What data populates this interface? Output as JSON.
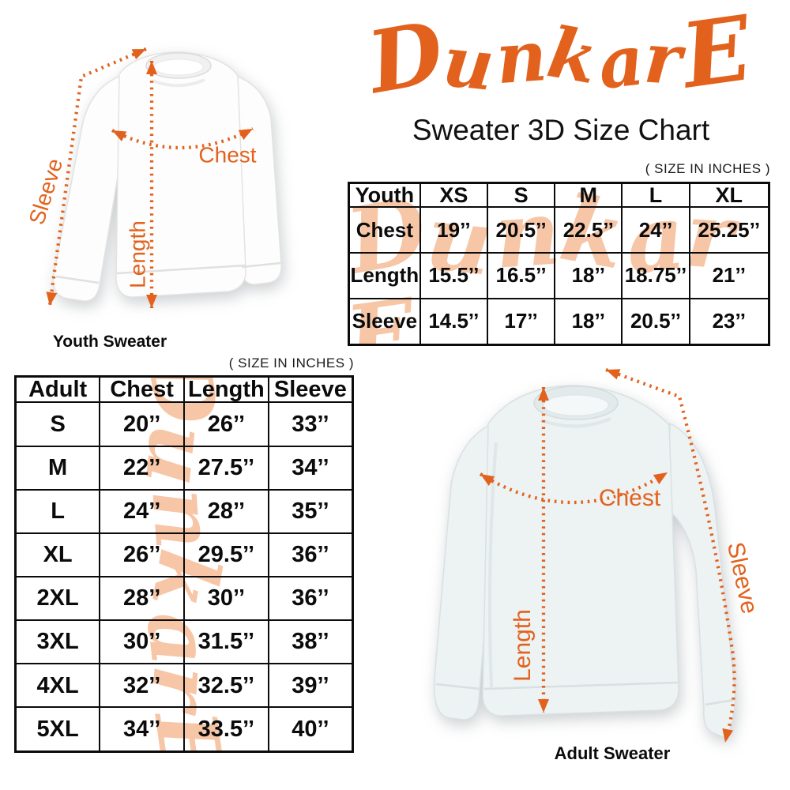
{
  "header": {
    "logo": "DunkarE",
    "subtitle": "Sweater 3D Size Chart",
    "units_note": "( SIZE IN INCHES )"
  },
  "diagrams": {
    "youth": {
      "caption": "Youth Sweater",
      "chest": "Chest",
      "length": "Length",
      "sleeve": "Sleeve"
    },
    "adult": {
      "caption": "Adult Sweater",
      "chest": "Chest",
      "length": "Length",
      "sleeve": "Sleeve"
    }
  },
  "youth_table": {
    "header": [
      "Youth",
      "XS",
      "S",
      "M",
      "L",
      "XL"
    ],
    "rows": [
      [
        "Chest",
        "19’’",
        "20.5’’",
        "22.5’’",
        "24’’",
        "25.25’’"
      ],
      [
        "Length",
        "15.5’’",
        "16.5’’",
        "18’’",
        "18.75’’",
        "21’’"
      ],
      [
        "Sleeve",
        "14.5’’",
        "17’’",
        "18’’",
        "20.5’’",
        "23’’"
      ]
    ]
  },
  "adult_table": {
    "header": [
      "Adult",
      "Chest",
      "Length",
      "Sleeve"
    ],
    "rows": [
      [
        "S",
        "20’’",
        "26’’",
        "33’’"
      ],
      [
        "M",
        "22’’",
        "27.5’’",
        "34’’"
      ],
      [
        "L",
        "24’’",
        "28’’",
        "35’’"
      ],
      [
        "XL",
        "26’’",
        "29.5’’",
        "36’’"
      ],
      [
        "2XL",
        "28’’",
        "30’’",
        "36’’"
      ],
      [
        "3XL",
        "30’’",
        "31.5’’",
        "38’’"
      ],
      [
        "4XL",
        "32’’",
        "32.5’’",
        "39’’"
      ],
      [
        "5XL",
        "34’’",
        "33.5’’",
        "40’’"
      ]
    ]
  },
  "colors": {
    "accent_orange": "#E2621D",
    "watermark_peach": "#F6C6A6",
    "table_border_black": "#0B0B0B",
    "background_white": "#FFFFFF"
  }
}
